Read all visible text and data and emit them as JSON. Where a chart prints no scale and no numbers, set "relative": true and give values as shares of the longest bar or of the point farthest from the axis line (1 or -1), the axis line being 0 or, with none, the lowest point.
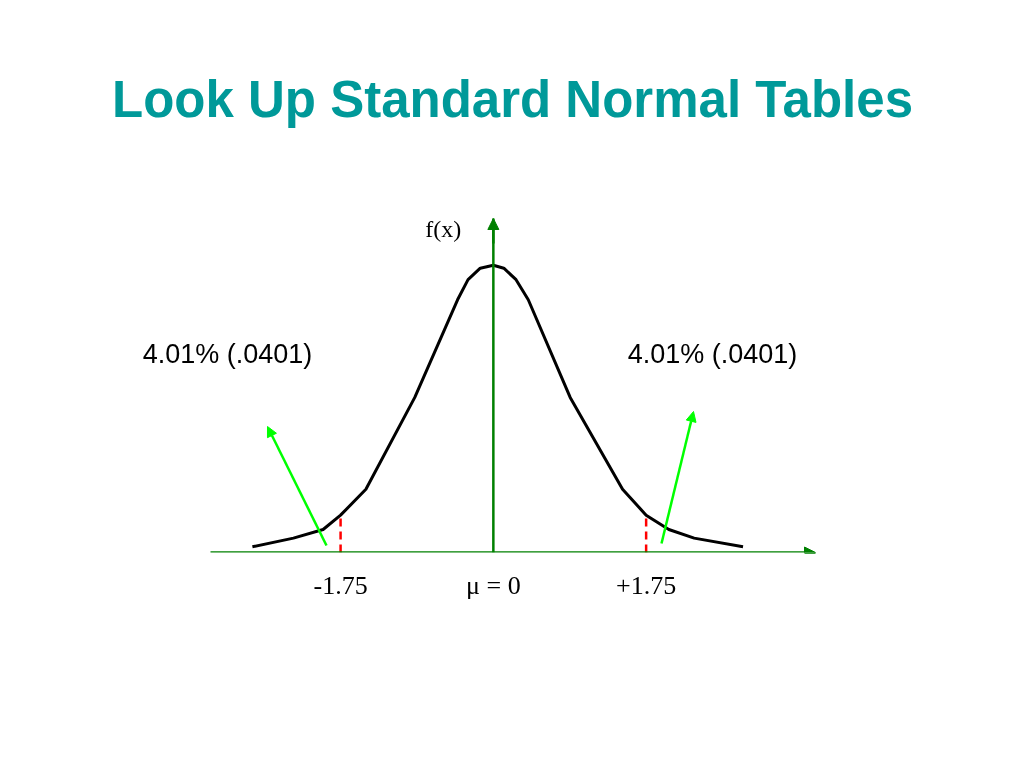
{
  "chart_data": {
    "type": "line",
    "title": "Look Up Standard Normal Tables",
    "ylabel": "f(x)",
    "relative": true,
    "x": [
      -2.76,
      -2.29,
      -1.95,
      -1.75,
      -1.46,
      -0.9,
      -0.41,
      -0.29,
      -0.15,
      0,
      0.12,
      0.26,
      0.4,
      0.88,
      1.48,
      1.75,
      2.01,
      2.3,
      2.86
    ],
    "values": [
      0.02,
      0.05,
      0.08,
      0.13,
      0.22,
      0.54,
      0.88,
      0.95,
      0.99,
      1,
      0.99,
      0.95,
      0.88,
      0.54,
      0.22,
      0.13,
      0.08,
      0.05,
      0.02
    ],
    "color": "#000000",
    "xlim": [
      -3.24,
      3.69
    ],
    "xticks": [
      -1.75,
      {
        "value": 0,
        "label": "μ = 0"
      },
      {
        "value": 1.75,
        "label": "+1.75"
      }
    ],
    "ref_lines": [
      {
        "axis": "x",
        "value": 0,
        "color": "#008000"
      },
      {
        "axis": "x",
        "value": -1.75,
        "color": "#ff0000",
        "line_style": "dashed"
      },
      {
        "axis": "x",
        "value": 1.75,
        "color": "#ff0000",
        "line_style": "dashed"
      }
    ],
    "annotations": [
      "4.01% (.0401)",
      "4.01% (.0401)"
    ]
  }
}
